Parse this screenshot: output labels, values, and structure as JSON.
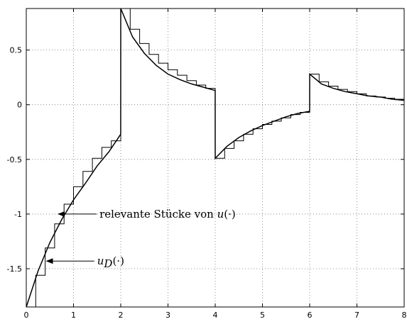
{
  "chart_data": {
    "type": "line",
    "title": "",
    "xlabel": "",
    "ylabel": "",
    "xlim": [
      0,
      8
    ],
    "ylim": [
      -1.85,
      0.88
    ],
    "grid": true,
    "x_ticks": [
      "0",
      "1",
      "2",
      "3",
      "4",
      "5",
      "6",
      "7",
      "8"
    ],
    "y_ticks": [
      "-1.5",
      "-1",
      "-0.5",
      "0",
      "0.5"
    ],
    "x_tick_values": [
      0,
      1,
      2,
      3,
      4,
      5,
      6,
      7,
      8
    ],
    "y_tick_values": [
      -1.5,
      -1,
      -0.5,
      0,
      0.5
    ],
    "series": [
      {
        "kind": "continuous",
        "x": [
          0,
          0.25,
          0.5,
          0.75,
          1,
          1.25,
          1.5,
          1.75,
          1.999,
          2,
          2.25,
          2.5,
          2.75,
          3,
          3.25,
          3.5,
          3.75,
          3.999,
          4,
          4.25,
          4.5,
          4.75,
          5,
          5.25,
          5.5,
          5.75,
          5.999,
          6,
          6.25,
          6.5,
          6.75,
          7,
          7.25,
          7.5,
          7.75,
          8
        ],
        "y": [
          -1.85,
          -1.52,
          -1.26,
          -1.05,
          -0.87,
          -0.72,
          -0.56,
          -0.43,
          -0.27,
          0.88,
          0.62,
          0.47,
          0.36,
          0.28,
          0.23,
          0.19,
          0.16,
          0.13,
          -0.49,
          -0.38,
          -0.3,
          -0.24,
          -0.19,
          -0.15,
          -0.11,
          -0.08,
          -0.06,
          0.28,
          0.19,
          0.15,
          0.12,
          0.1,
          0.08,
          0.07,
          0.05,
          0.04
        ]
      },
      {
        "kind": "staircase",
        "x": [
          0,
          0.2,
          0.4,
          0.6,
          0.8,
          1.0,
          1.2,
          1.4,
          1.6,
          1.8,
          2.0,
          2.2,
          2.4,
          2.6,
          2.8,
          3.0,
          3.2,
          3.4,
          3.6,
          3.8,
          4.0,
          4.2,
          4.4,
          4.6,
          4.8,
          5.0,
          5.2,
          5.4,
          5.6,
          5.8,
          6.0,
          6.2,
          6.4,
          6.6,
          6.8,
          7.0,
          7.2,
          7.4,
          7.6,
          7.8
        ],
        "y": [
          -1.85,
          -1.56,
          -1.31,
          -1.09,
          -0.91,
          -0.75,
          -0.61,
          -0.49,
          -0.39,
          -0.33,
          0.88,
          0.69,
          0.56,
          0.46,
          0.38,
          0.32,
          0.27,
          0.22,
          0.18,
          0.15,
          -0.49,
          -0.4,
          -0.33,
          -0.27,
          -0.22,
          -0.18,
          -0.15,
          -0.12,
          -0.09,
          -0.07,
          0.28,
          0.21,
          0.17,
          0.14,
          0.12,
          0.1,
          0.08,
          0.07,
          0.06,
          0.05
        ]
      }
    ],
    "annotations": [
      {
        "text_main": "relevante Stücke von ",
        "text_var": "u",
        "text_arg": "(·)",
        "arrow_to_x": 0.65,
        "arrow_to_y": -1.0,
        "text_x": 1.55,
        "text_y": -1.0
      },
      {
        "text_main": "",
        "text_var": "u",
        "text_sub": "D",
        "text_arg": "(·)",
        "arrow_to_x": 0.4,
        "arrow_to_y": -1.43,
        "text_x": 1.5,
        "text_y": -1.43
      }
    ]
  }
}
